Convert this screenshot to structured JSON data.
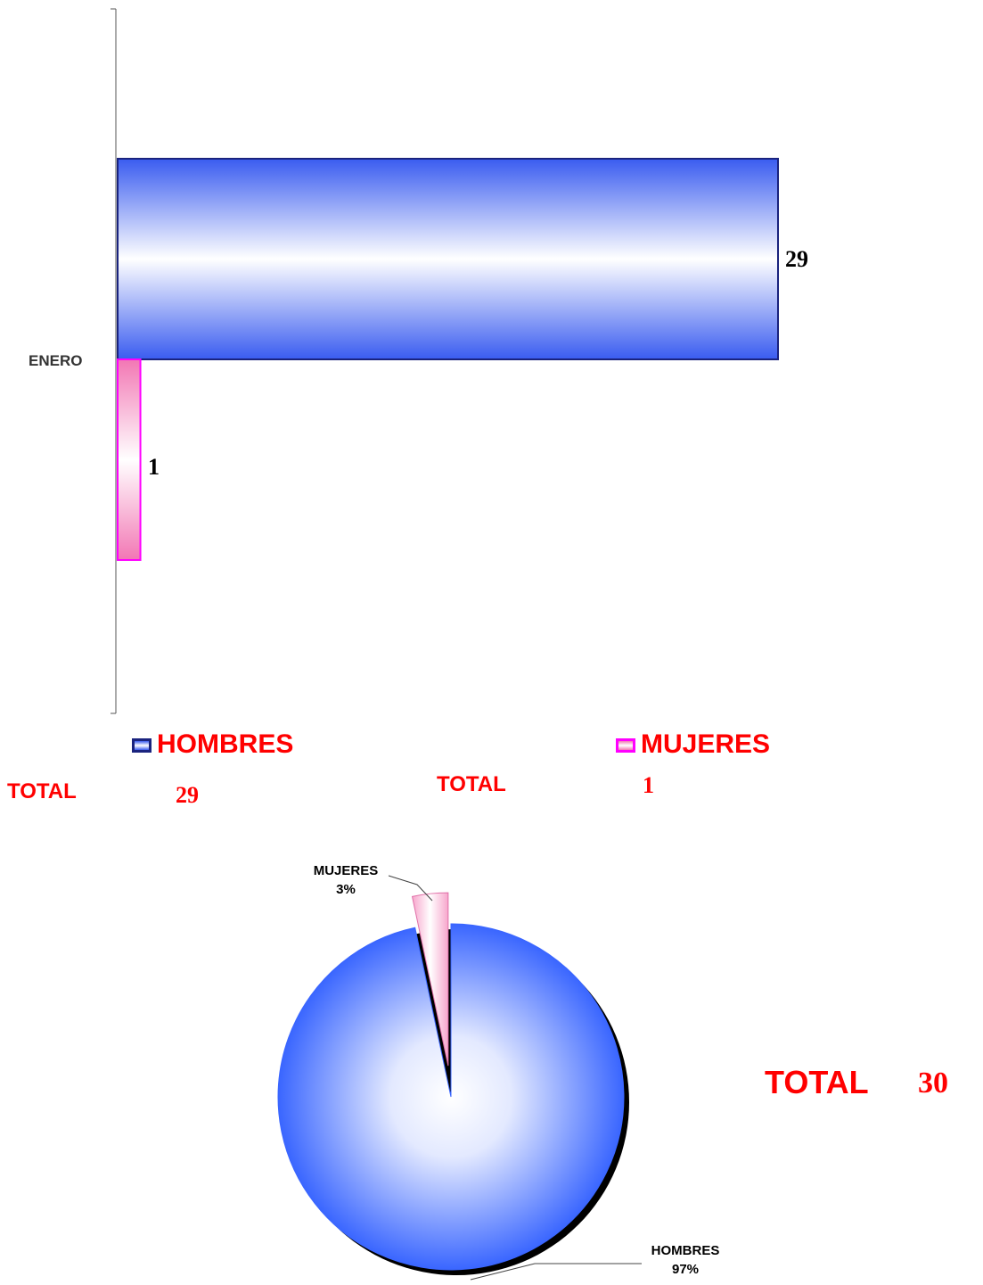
{
  "chart_data": [
    {
      "type": "bar",
      "orientation": "horizontal",
      "categories": [
        "ENERO"
      ],
      "series": [
        {
          "name": "HOMBRES",
          "values": [
            29
          ],
          "color": "#3a5cf0"
        },
        {
          "name": "MUJERES",
          "values": [
            1
          ],
          "color": "#f277b4"
        }
      ],
      "xlim": [
        0,
        29
      ],
      "grid": false,
      "legend_position": "bottom"
    },
    {
      "type": "pie",
      "labels": [
        "HOMBRES",
        "MUJERES"
      ],
      "values": [
        29,
        1
      ],
      "percent_labels": [
        "97%",
        "3%"
      ],
      "colors": [
        "#3a66ff",
        "#f7a6cc"
      ],
      "exploded": "MUJERES"
    }
  ],
  "bar_chart": {
    "category_label": "ENERO",
    "value_labels": [
      "29",
      "1"
    ]
  },
  "legend": {
    "hombres": "HOMBRES",
    "mujeres": "MUJERES"
  },
  "totals": {
    "hombres_label": "TOTAL",
    "hombres_value": "29",
    "mujeres_label": "TOTAL",
    "mujeres_value": "1"
  },
  "pie_chart": {
    "mujeres_name": "MUJERES",
    "mujeres_pct": "3%",
    "hombres_name": "HOMBRES",
    "hombres_pct": "97%"
  },
  "grand_total": {
    "label": "TOTAL",
    "value": "30"
  }
}
